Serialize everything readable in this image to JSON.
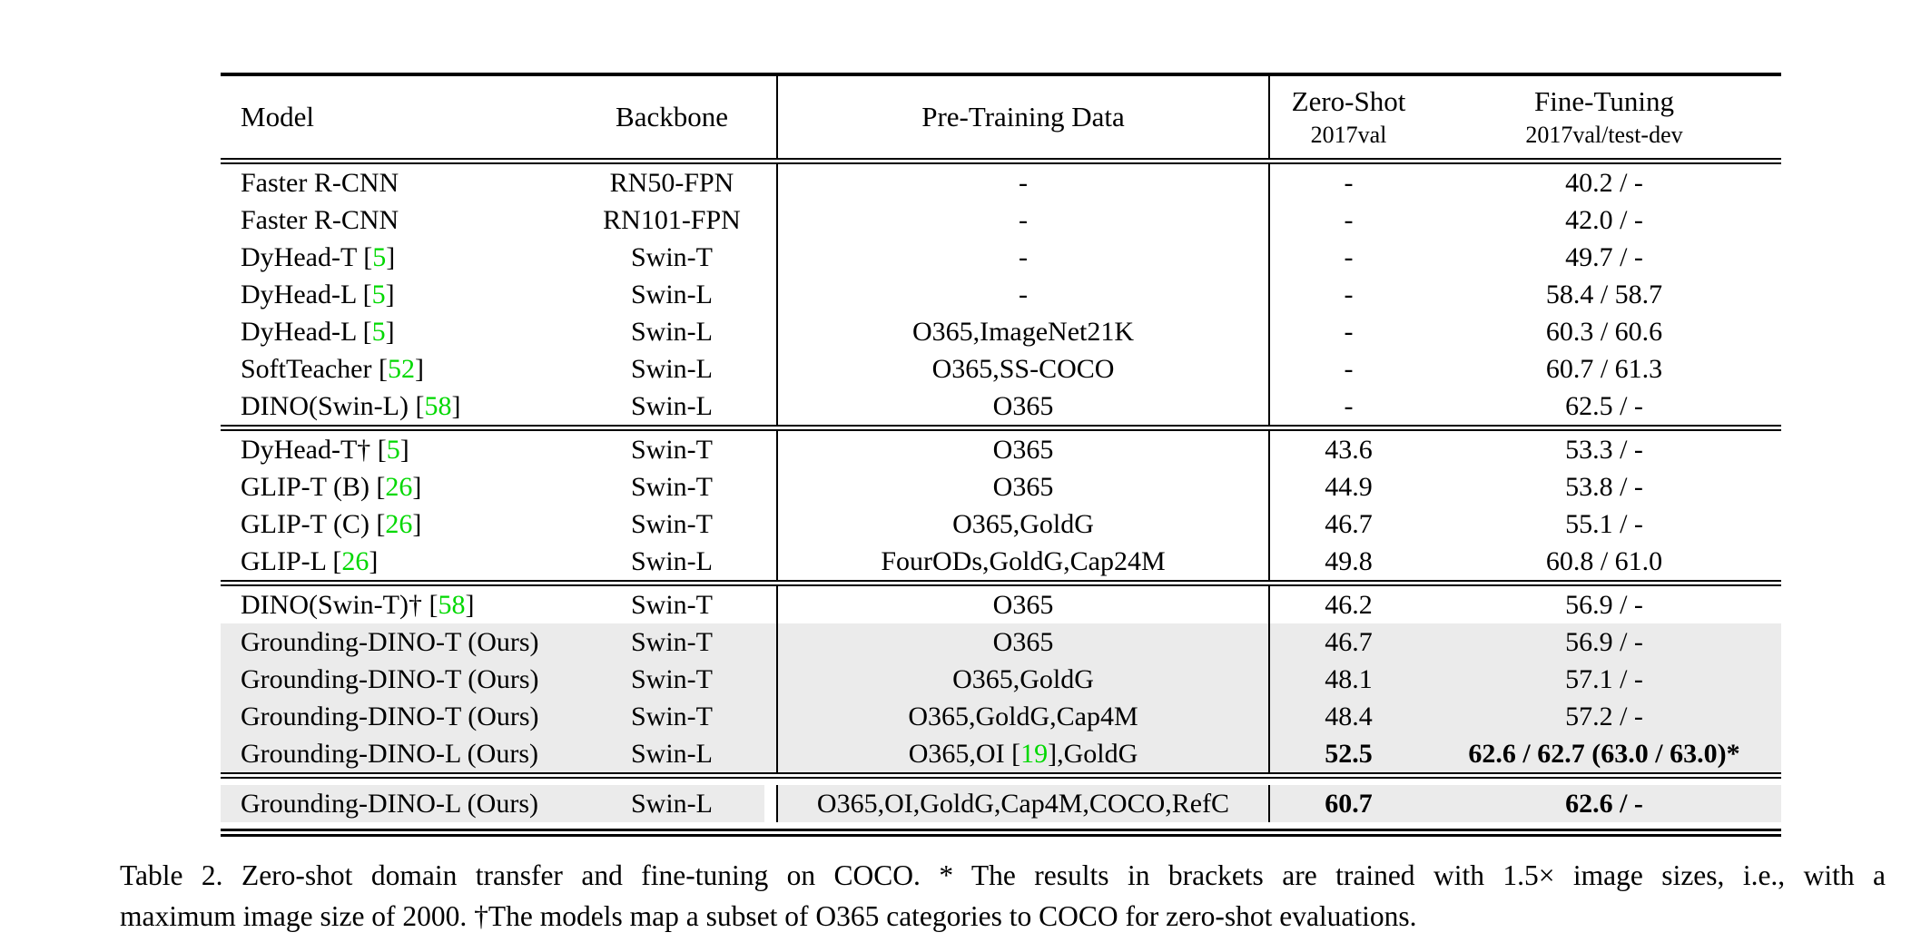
{
  "table": {
    "columns": [
      "Model",
      "Backbone",
      "Pre-Training Data"
    ],
    "zero_shot": {
      "title": "Zero-Shot",
      "sub": "2017val"
    },
    "fine_tuning": {
      "title": "Fine-Tuning",
      "sub": "2017val/test-dev"
    },
    "groups": [
      {
        "rows": [
          {
            "model": [
              {
                "t": "Faster R-CNN"
              }
            ],
            "backbone": "RN50-FPN",
            "pretrain": [
              {
                "t": "-"
              }
            ],
            "zs": "-",
            "ft": "40.2 / -"
          },
          {
            "model": [
              {
                "t": "Faster R-CNN"
              }
            ],
            "backbone": "RN101-FPN",
            "pretrain": [
              {
                "t": "-"
              }
            ],
            "zs": "-",
            "ft": "42.0 / -"
          },
          {
            "model": [
              {
                "t": "DyHead-T ["
              },
              {
                "t": "5",
                "g": 1
              },
              {
                "t": "]"
              }
            ],
            "backbone": "Swin-T",
            "pretrain": [
              {
                "t": "-"
              }
            ],
            "zs": "-",
            "ft": "49.7 / -"
          },
          {
            "model": [
              {
                "t": "DyHead-L ["
              },
              {
                "t": "5",
                "g": 1
              },
              {
                "t": "]"
              }
            ],
            "backbone": "Swin-L",
            "pretrain": [
              {
                "t": "-"
              }
            ],
            "zs": "-",
            "ft": "58.4 / 58.7"
          },
          {
            "model": [
              {
                "t": "DyHead-L ["
              },
              {
                "t": "5",
                "g": 1
              },
              {
                "t": "]"
              }
            ],
            "backbone": "Swin-L",
            "pretrain": [
              {
                "t": "O365,ImageNet21K"
              }
            ],
            "zs": "-",
            "ft": "60.3 / 60.6"
          },
          {
            "model": [
              {
                "t": "SoftTeacher ["
              },
              {
                "t": "52",
                "g": 1
              },
              {
                "t": "]"
              }
            ],
            "backbone": "Swin-L",
            "pretrain": [
              {
                "t": "O365,SS-COCO"
              }
            ],
            "zs": "-",
            "ft": "60.7 / 61.3"
          },
          {
            "model": [
              {
                "t": "DINO(Swin-L) ["
              },
              {
                "t": "58",
                "g": 1
              },
              {
                "t": "]"
              }
            ],
            "backbone": "Swin-L",
            "pretrain": [
              {
                "t": "O365"
              }
            ],
            "zs": "-",
            "ft": "62.5 / -"
          }
        ]
      },
      {
        "rows": [
          {
            "model": [
              {
                "t": "DyHead-T† ["
              },
              {
                "t": "5",
                "g": 1
              },
              {
                "t": "]"
              }
            ],
            "backbone": "Swin-T",
            "pretrain": [
              {
                "t": "O365"
              }
            ],
            "zs": "43.6",
            "ft": "53.3 / -"
          },
          {
            "model": [
              {
                "t": "GLIP-T (B) ["
              },
              {
                "t": "26",
                "g": 1
              },
              {
                "t": "]"
              }
            ],
            "backbone": "Swin-T",
            "pretrain": [
              {
                "t": "O365"
              }
            ],
            "zs": "44.9",
            "ft": "53.8 / -"
          },
          {
            "model": [
              {
                "t": "GLIP-T (C) ["
              },
              {
                "t": "26",
                "g": 1
              },
              {
                "t": "]"
              }
            ],
            "backbone": "Swin-T",
            "pretrain": [
              {
                "t": "O365,GoldG"
              }
            ],
            "zs": "46.7",
            "ft": "55.1 / -"
          },
          {
            "model": [
              {
                "t": "GLIP-L ["
              },
              {
                "t": "26",
                "g": 1
              },
              {
                "t": "]"
              }
            ],
            "backbone": "Swin-L",
            "pretrain": [
              {
                "t": "FourODs,GoldG,Cap24M"
              }
            ],
            "zs": "49.8",
            "ft": "60.8 / 61.0"
          }
        ]
      },
      {
        "rows": [
          {
            "model": [
              {
                "t": "DINO(Swin-T)† ["
              },
              {
                "t": "58",
                "g": 1
              },
              {
                "t": "]"
              }
            ],
            "backbone": "Swin-T",
            "pretrain": [
              {
                "t": "O365"
              }
            ],
            "zs": "46.2",
            "ft": "56.9 / -"
          },
          {
            "model": [
              {
                "t": "Grounding-DINO-T (Ours)"
              }
            ],
            "backbone": "Swin-T",
            "pretrain": [
              {
                "t": "O365"
              }
            ],
            "zs": "46.7",
            "ft": "56.9 / -",
            "shaded": true
          },
          {
            "model": [
              {
                "t": "Grounding-DINO-T (Ours)"
              }
            ],
            "backbone": "Swin-T",
            "pretrain": [
              {
                "t": "O365,GoldG"
              }
            ],
            "zs": "48.1",
            "ft": "57.1 / -",
            "shaded": true
          },
          {
            "model": [
              {
                "t": "Grounding-DINO-T (Ours)"
              }
            ],
            "backbone": "Swin-T",
            "pretrain": [
              {
                "t": "O365,GoldG,Cap4M"
              }
            ],
            "zs": "48.4",
            "ft": "57.2 / -",
            "shaded": true
          },
          {
            "model": [
              {
                "t": "Grounding-DINO-L (Ours)"
              }
            ],
            "backbone": "Swin-L",
            "pretrain": [
              {
                "t": "O365,OI ["
              },
              {
                "t": "19",
                "g": 1
              },
              {
                "t": "],GoldG"
              }
            ],
            "zs": "52.5",
            "ft": "62.6 / 62.7 (63.0 / 63.0)*",
            "shaded": true,
            "bold": true
          }
        ]
      },
      {
        "last": true,
        "rows": [
          {
            "model": [
              {
                "t": "Grounding-DINO-L (Ours)"
              }
            ],
            "backbone": "Swin-L",
            "pretrain": [
              {
                "t": "O365,OI,GoldG,Cap4M,COCO,RefC"
              }
            ],
            "zs": "60.7",
            "ft": "62.6 / -",
            "shaded": true,
            "bold": true,
            "gap": true
          }
        ]
      }
    ]
  },
  "caption": {
    "line1": "Table 2.  Zero-shot domain transfer and fine-tuning on COCO. * The results in brackets are trained with 1.5× image sizes, i.e., with a",
    "line2": "maximum image size of 2000. †The models map a subset of O365 categories to COCO for zero-shot evaluations."
  },
  "colors": {
    "citation_green": "#00d800",
    "row_shade": "#ebebeb"
  }
}
